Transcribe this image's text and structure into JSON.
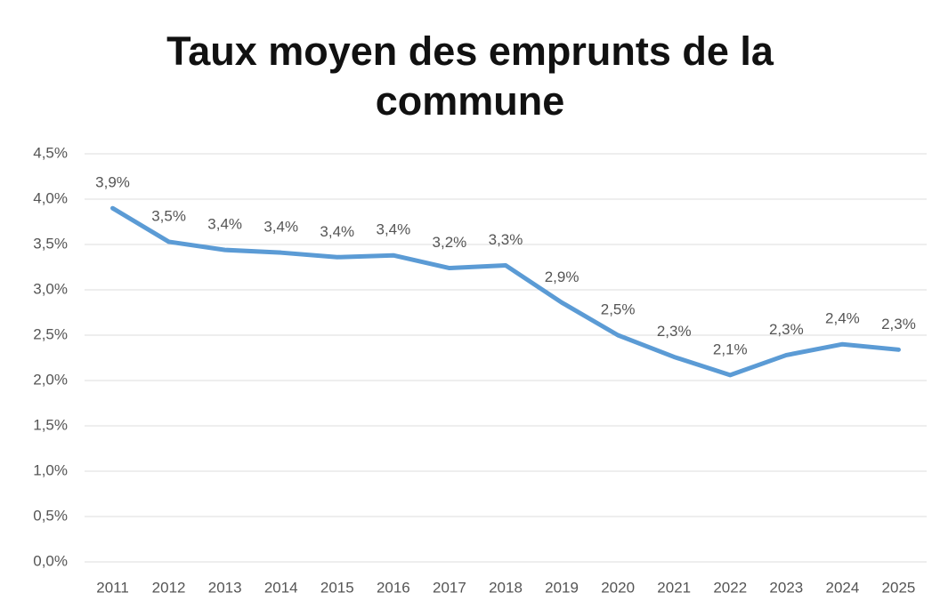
{
  "chart_data": {
    "type": "line",
    "title": "Taux moyen des emprunts de la commune",
    "categories": [
      "2011",
      "2012",
      "2013",
      "2014",
      "2015",
      "2016",
      "2017",
      "2018",
      "2019",
      "2020",
      "2021",
      "2022",
      "2023",
      "2024",
      "2025"
    ],
    "series": [
      {
        "color": "#5b9bd5",
        "values": [
          3.9,
          3.53,
          3.44,
          3.41,
          3.36,
          3.38,
          3.24,
          3.27,
          2.86,
          2.5,
          2.26,
          2.06,
          2.28,
          2.4,
          2.34
        ],
        "value_labels": [
          "3,9%",
          "3,5%",
          "3,4%",
          "3,4%",
          "3,4%",
          "3,4%",
          "3,2%",
          "3,3%",
          "2,9%",
          "2,5%",
          "2,3%",
          "2,1%",
          "2,3%",
          "2,4%",
          "2,3%"
        ]
      }
    ],
    "ylim": [
      0,
      4.5
    ],
    "yticks": [
      {
        "value": 0,
        "label": "0,0%"
      },
      {
        "value": 0.5,
        "label": "0,5%"
      },
      {
        "value": 1,
        "label": "1,0%"
      },
      {
        "value": 1.5,
        "label": "1,5%"
      },
      {
        "value": 2,
        "label": "2,0%"
      },
      {
        "value": 2.5,
        "label": "2,5%"
      },
      {
        "value": 3,
        "label": "3,0%"
      },
      {
        "value": 3.5,
        "label": "3,5%"
      },
      {
        "value": 4,
        "label": "4,0%"
      },
      {
        "value": 4.5,
        "label": "4,5%"
      }
    ],
    "grid": true
  }
}
